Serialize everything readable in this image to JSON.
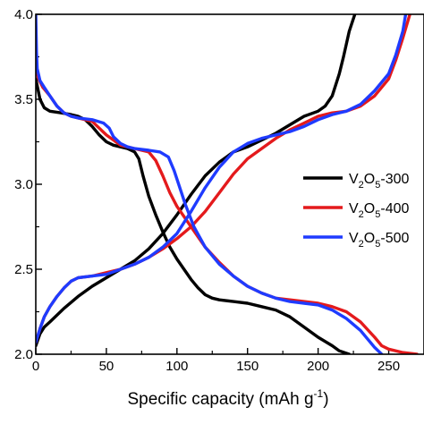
{
  "chart_data": {
    "type": "line",
    "xlabel": "Specific capacity (mAh g",
    "xlabel_sup": "-1",
    "xlabel_end": ")",
    "ylabel": "",
    "xlim": [
      0,
      275
    ],
    "ylim": [
      2.0,
      4.0
    ],
    "xticks": [
      "0",
      "50",
      "100",
      "150",
      "200",
      "250"
    ],
    "yticks": [
      "2.0",
      "2.5",
      "3.0",
      "3.5",
      "4.0"
    ],
    "legend_position": "right",
    "series": [
      {
        "name": "V2O5-300",
        "legend_base": "V",
        "legend_sub1": "2",
        "legend_mid": "O",
        "legend_sub2": "5",
        "legend_tail": "-300",
        "color": "#000000",
        "discharge": [
          [
            0,
            3.62
          ],
          [
            1,
            3.58
          ],
          [
            3,
            3.5
          ],
          [
            6,
            3.45
          ],
          [
            10,
            3.43
          ],
          [
            18,
            3.42
          ],
          [
            25,
            3.41
          ],
          [
            30,
            3.4
          ],
          [
            35,
            3.38
          ],
          [
            40,
            3.34
          ],
          [
            45,
            3.29
          ],
          [
            50,
            3.25
          ],
          [
            55,
            3.23
          ],
          [
            60,
            3.22
          ],
          [
            65,
            3.21
          ],
          [
            70,
            3.19
          ],
          [
            73,
            3.15
          ],
          [
            76,
            3.05
          ],
          [
            80,
            2.93
          ],
          [
            85,
            2.82
          ],
          [
            90,
            2.72
          ],
          [
            95,
            2.63
          ],
          [
            100,
            2.56
          ],
          [
            105,
            2.5
          ],
          [
            110,
            2.44
          ],
          [
            115,
            2.39
          ],
          [
            120,
            2.35
          ],
          [
            125,
            2.33
          ],
          [
            130,
            2.32
          ],
          [
            140,
            2.31
          ],
          [
            150,
            2.3
          ],
          [
            160,
            2.28
          ],
          [
            170,
            2.26
          ],
          [
            180,
            2.22
          ],
          [
            190,
            2.16
          ],
          [
            200,
            2.1
          ],
          [
            210,
            2.05
          ],
          [
            215,
            2.02
          ],
          [
            222,
            2.0
          ]
        ],
        "charge": [
          [
            0,
            2.05
          ],
          [
            3,
            2.12
          ],
          [
            6,
            2.16
          ],
          [
            10,
            2.19
          ],
          [
            20,
            2.27
          ],
          [
            30,
            2.34
          ],
          [
            40,
            2.4
          ],
          [
            50,
            2.45
          ],
          [
            60,
            2.5
          ],
          [
            70,
            2.55
          ],
          [
            80,
            2.62
          ],
          [
            90,
            2.71
          ],
          [
            100,
            2.82
          ],
          [
            110,
            2.94
          ],
          [
            120,
            3.05
          ],
          [
            130,
            3.13
          ],
          [
            140,
            3.19
          ],
          [
            150,
            3.22
          ],
          [
            160,
            3.26
          ],
          [
            170,
            3.3
          ],
          [
            180,
            3.35
          ],
          [
            190,
            3.4
          ],
          [
            200,
            3.43
          ],
          [
            205,
            3.46
          ],
          [
            210,
            3.52
          ],
          [
            215,
            3.65
          ],
          [
            218,
            3.75
          ],
          [
            222,
            3.9
          ],
          [
            226,
            4.0
          ]
        ]
      },
      {
        "name": "V2O5-400",
        "legend_base": "V",
        "legend_sub1": "2",
        "legend_mid": "O",
        "legend_sub2": "5",
        "legend_tail": "-400",
        "color": "#e41a1c",
        "discharge": [
          [
            0,
            3.68
          ],
          [
            2,
            3.62
          ],
          [
            5,
            3.57
          ],
          [
            10,
            3.52
          ],
          [
            15,
            3.46
          ],
          [
            20,
            3.42
          ],
          [
            25,
            3.4
          ],
          [
            30,
            3.39
          ],
          [
            40,
            3.37
          ],
          [
            45,
            3.33
          ],
          [
            50,
            3.29
          ],
          [
            60,
            3.23
          ],
          [
            70,
            3.21
          ],
          [
            80,
            3.19
          ],
          [
            85,
            3.14
          ],
          [
            90,
            3.05
          ],
          [
            95,
            2.95
          ],
          [
            100,
            2.87
          ],
          [
            110,
            2.75
          ],
          [
            120,
            2.63
          ],
          [
            130,
            2.54
          ],
          [
            140,
            2.46
          ],
          [
            150,
            2.4
          ],
          [
            160,
            2.36
          ],
          [
            170,
            2.33
          ],
          [
            180,
            2.32
          ],
          [
            190,
            2.31
          ],
          [
            200,
            2.3
          ],
          [
            210,
            2.28
          ],
          [
            220,
            2.25
          ],
          [
            230,
            2.19
          ],
          [
            240,
            2.1
          ],
          [
            245,
            2.05
          ],
          [
            250,
            2.03
          ],
          [
            260,
            2.01
          ],
          [
            270,
            2.0
          ]
        ],
        "charge": [
          [
            0,
            2.07
          ],
          [
            3,
            2.15
          ],
          [
            6,
            2.22
          ],
          [
            10,
            2.28
          ],
          [
            15,
            2.34
          ],
          [
            20,
            2.39
          ],
          [
            25,
            2.43
          ],
          [
            30,
            2.45
          ],
          [
            40,
            2.46
          ],
          [
            50,
            2.48
          ],
          [
            60,
            2.5
          ],
          [
            70,
            2.53
          ],
          [
            80,
            2.57
          ],
          [
            90,
            2.62
          ],
          [
            100,
            2.68
          ],
          [
            110,
            2.75
          ],
          [
            120,
            2.84
          ],
          [
            130,
            2.95
          ],
          [
            140,
            3.06
          ],
          [
            150,
            3.15
          ],
          [
            160,
            3.21
          ],
          [
            170,
            3.27
          ],
          [
            180,
            3.32
          ],
          [
            190,
            3.36
          ],
          [
            200,
            3.4
          ],
          [
            210,
            3.42
          ],
          [
            220,
            3.43
          ],
          [
            230,
            3.46
          ],
          [
            240,
            3.52
          ],
          [
            250,
            3.62
          ],
          [
            255,
            3.73
          ],
          [
            260,
            3.86
          ],
          [
            265,
            4.0
          ]
        ]
      },
      {
        "name": "V2O5-500",
        "legend_base": "V",
        "legend_sub1": "2",
        "legend_mid": "O",
        "legend_sub2": "5",
        "legend_tail": "-500",
        "color": "#1f3bff",
        "discharge": [
          [
            0,
            4.0
          ],
          [
            0.5,
            3.78
          ],
          [
            1,
            3.68
          ],
          [
            3,
            3.61
          ],
          [
            6,
            3.57
          ],
          [
            10,
            3.52
          ],
          [
            15,
            3.46
          ],
          [
            20,
            3.42
          ],
          [
            25,
            3.4
          ],
          [
            30,
            3.39
          ],
          [
            40,
            3.38
          ],
          [
            48,
            3.36
          ],
          [
            52,
            3.33
          ],
          [
            55,
            3.28
          ],
          [
            60,
            3.24
          ],
          [
            65,
            3.22
          ],
          [
            70,
            3.21
          ],
          [
            80,
            3.2
          ],
          [
            88,
            3.19
          ],
          [
            94,
            3.16
          ],
          [
            98,
            3.08
          ],
          [
            102,
            2.98
          ],
          [
            106,
            2.88
          ],
          [
            112,
            2.75
          ],
          [
            120,
            2.63
          ],
          [
            130,
            2.53
          ],
          [
            140,
            2.46
          ],
          [
            150,
            2.4
          ],
          [
            160,
            2.36
          ],
          [
            170,
            2.33
          ],
          [
            180,
            2.31
          ],
          [
            190,
            2.3
          ],
          [
            200,
            2.29
          ],
          [
            210,
            2.26
          ],
          [
            220,
            2.21
          ],
          [
            230,
            2.14
          ],
          [
            235,
            2.09
          ],
          [
            240,
            2.04
          ],
          [
            245,
            2.0
          ]
        ],
        "charge": [
          [
            0,
            2.07
          ],
          [
            3,
            2.15
          ],
          [
            6,
            2.22
          ],
          [
            10,
            2.28
          ],
          [
            15,
            2.34
          ],
          [
            20,
            2.39
          ],
          [
            25,
            2.43
          ],
          [
            30,
            2.45
          ],
          [
            40,
            2.46
          ],
          [
            50,
            2.47
          ],
          [
            60,
            2.5
          ],
          [
            70,
            2.53
          ],
          [
            80,
            2.57
          ],
          [
            90,
            2.63
          ],
          [
            100,
            2.71
          ],
          [
            110,
            2.84
          ],
          [
            120,
            2.98
          ],
          [
            130,
            3.1
          ],
          [
            140,
            3.19
          ],
          [
            150,
            3.24
          ],
          [
            160,
            3.27
          ],
          [
            170,
            3.29
          ],
          [
            180,
            3.31
          ],
          [
            190,
            3.34
          ],
          [
            200,
            3.38
          ],
          [
            210,
            3.41
          ],
          [
            220,
            3.43
          ],
          [
            230,
            3.47
          ],
          [
            240,
            3.55
          ],
          [
            250,
            3.65
          ],
          [
            255,
            3.76
          ],
          [
            260,
            3.9
          ],
          [
            262,
            4.0
          ]
        ]
      }
    ]
  }
}
